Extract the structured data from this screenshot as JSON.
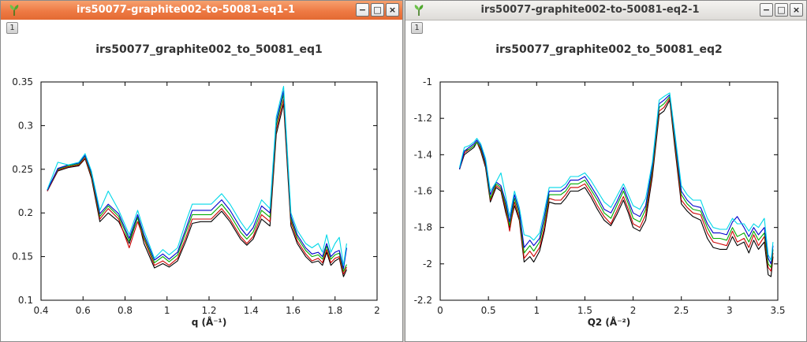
{
  "windows": [
    {
      "title": "irs50077-graphite002-to-50081-eq1-1",
      "tab": "1",
      "active": true
    },
    {
      "title": "irs50077-graphite002-to-50081-eq2-1",
      "tab": "1",
      "active": false
    }
  ],
  "window_buttons": {
    "minimize": "−",
    "maximize": "□",
    "close": "×"
  },
  "chart_data": [
    {
      "type": "line",
      "title": "irs50077_graphite002_to_50081_eq1",
      "xlabel": "q (Å⁻¹)",
      "ylabel": "",
      "xlim": [
        0.4,
        2
      ],
      "ylim": [
        0.1,
        0.35
      ],
      "xticks": [
        0.4,
        0.6,
        0.8,
        1,
        1.2,
        1.4,
        1.6,
        1.8,
        2
      ],
      "yticks": [
        0.1,
        0.15,
        0.2,
        0.25,
        0.3,
        0.35
      ],
      "grid": false,
      "x": [
        0.43,
        0.48,
        0.53,
        0.58,
        0.61,
        0.64,
        0.68,
        0.72,
        0.77,
        0.82,
        0.86,
        0.89,
        0.94,
        0.98,
        1.01,
        1.05,
        1.09,
        1.12,
        1.16,
        1.21,
        1.26,
        1.3,
        1.35,
        1.38,
        1.41,
        1.45,
        1.49,
        1.52,
        1.555,
        1.59,
        1.62,
        1.66,
        1.69,
        1.72,
        1.74,
        1.76,
        1.78,
        1.8,
        1.82,
        1.84,
        1.855
      ],
      "series": [
        {
          "color": "#000000",
          "values": [
            0.225,
            0.248,
            0.252,
            0.254,
            0.262,
            0.24,
            0.19,
            0.2,
            0.19,
            0.165,
            0.195,
            0.165,
            0.137,
            0.142,
            0.138,
            0.145,
            0.168,
            0.188,
            0.19,
            0.19,
            0.202,
            0.19,
            0.17,
            0.163,
            0.17,
            0.193,
            0.185,
            0.29,
            0.325,
            0.185,
            0.165,
            0.15,
            0.143,
            0.145,
            0.14,
            0.155,
            0.14,
            0.145,
            0.148,
            0.127,
            0.135
          ]
        },
        {
          "color": "#cc0000",
          "values": [
            0.225,
            0.249,
            0.253,
            0.255,
            0.263,
            0.242,
            0.193,
            0.205,
            0.193,
            0.16,
            0.19,
            0.17,
            0.14,
            0.145,
            0.14,
            0.148,
            0.172,
            0.193,
            0.193,
            0.193,
            0.205,
            0.193,
            0.173,
            0.165,
            0.173,
            0.198,
            0.19,
            0.295,
            0.33,
            0.19,
            0.168,
            0.153,
            0.145,
            0.148,
            0.143,
            0.158,
            0.143,
            0.148,
            0.15,
            0.13,
            0.138
          ]
        },
        {
          "color": "#00aa00",
          "values": [
            0.226,
            0.25,
            0.254,
            0.256,
            0.265,
            0.244,
            0.196,
            0.208,
            0.196,
            0.168,
            0.195,
            0.172,
            0.143,
            0.15,
            0.144,
            0.152,
            0.178,
            0.198,
            0.198,
            0.198,
            0.21,
            0.198,
            0.178,
            0.17,
            0.178,
            0.203,
            0.195,
            0.3,
            0.336,
            0.193,
            0.172,
            0.157,
            0.15,
            0.152,
            0.147,
            0.162,
            0.147,
            0.152,
            0.154,
            0.133,
            0.141
          ]
        },
        {
          "color": "#0000cc",
          "values": [
            0.226,
            0.251,
            0.255,
            0.257,
            0.266,
            0.246,
            0.199,
            0.21,
            0.199,
            0.171,
            0.198,
            0.175,
            0.146,
            0.153,
            0.147,
            0.155,
            0.182,
            0.203,
            0.203,
            0.203,
            0.215,
            0.203,
            0.183,
            0.174,
            0.183,
            0.208,
            0.2,
            0.305,
            0.34,
            0.196,
            0.175,
            0.16,
            0.153,
            0.155,
            0.15,
            0.165,
            0.15,
            0.155,
            0.157,
            0.136,
            0.16
          ]
        },
        {
          "color": "#00d8e8",
          "values": [
            0.227,
            0.258,
            0.255,
            0.258,
            0.268,
            0.248,
            0.203,
            0.225,
            0.203,
            0.175,
            0.203,
            0.18,
            0.148,
            0.158,
            0.152,
            0.16,
            0.19,
            0.21,
            0.21,
            0.21,
            0.222,
            0.21,
            0.19,
            0.18,
            0.19,
            0.215,
            0.205,
            0.31,
            0.345,
            0.2,
            0.18,
            0.165,
            0.16,
            0.165,
            0.155,
            0.175,
            0.155,
            0.165,
            0.172,
            0.14,
            0.165
          ]
        }
      ]
    },
    {
      "type": "line",
      "title": "irs50077_graphite002_to_50081_eq2",
      "xlabel": "Q2 (Å⁻²)",
      "ylabel": "",
      "xlim": [
        0,
        3.5
      ],
      "ylim": [
        -2.2,
        -1
      ],
      "xticks": [
        0,
        0.5,
        1,
        1.5,
        2,
        2.5,
        3,
        3.5
      ],
      "yticks": [
        -2.2,
        -2,
        -1.8,
        -1.6,
        -1.4,
        -1.2,
        -1
      ],
      "grid": false,
      "x": [
        0.2,
        0.25,
        0.3,
        0.35,
        0.38,
        0.42,
        0.47,
        0.52,
        0.58,
        0.63,
        0.68,
        0.72,
        0.77,
        0.82,
        0.87,
        0.93,
        0.97,
        1.03,
        1.08,
        1.13,
        1.19,
        1.25,
        1.3,
        1.35,
        1.43,
        1.5,
        1.56,
        1.63,
        1.7,
        1.77,
        1.83,
        1.9,
        1.95,
        2.0,
        2.07,
        2.13,
        2.2,
        2.27,
        2.32,
        2.38,
        2.43,
        2.5,
        2.56,
        2.62,
        2.7,
        2.77,
        2.83,
        2.9,
        2.97,
        3.03,
        3.08,
        3.15,
        3.2,
        3.25,
        3.3,
        3.36,
        3.4,
        3.43,
        3.45
      ],
      "series": [
        {
          "color": "#000000",
          "values": [
            -1.48,
            -1.4,
            -1.38,
            -1.36,
            -1.33,
            -1.38,
            -1.47,
            -1.66,
            -1.58,
            -1.6,
            -1.72,
            -1.8,
            -1.68,
            -1.76,
            -1.99,
            -1.96,
            -1.99,
            -1.93,
            -1.82,
            -1.66,
            -1.67,
            -1.67,
            -1.64,
            -1.6,
            -1.6,
            -1.58,
            -1.63,
            -1.7,
            -1.76,
            -1.79,
            -1.73,
            -1.65,
            -1.72,
            -1.8,
            -1.82,
            -1.76,
            -1.52,
            -1.18,
            -1.16,
            -1.1,
            -1.35,
            -1.67,
            -1.71,
            -1.74,
            -1.76,
            -1.86,
            -1.91,
            -1.92,
            -1.92,
            -1.85,
            -1.9,
            -1.88,
            -1.94,
            -1.87,
            -1.92,
            -1.88,
            -2.06,
            -2.07,
            -1.96
          ]
        },
        {
          "color": "#cc0000",
          "values": [
            -1.48,
            -1.39,
            -1.37,
            -1.35,
            -1.33,
            -1.37,
            -1.46,
            -1.65,
            -1.57,
            -1.59,
            -1.7,
            -1.82,
            -1.66,
            -1.75,
            -1.97,
            -1.93,
            -1.96,
            -1.91,
            -1.8,
            -1.64,
            -1.65,
            -1.65,
            -1.62,
            -1.58,
            -1.58,
            -1.56,
            -1.61,
            -1.68,
            -1.74,
            -1.78,
            -1.71,
            -1.63,
            -1.7,
            -1.78,
            -1.8,
            -1.73,
            -1.5,
            -1.16,
            -1.14,
            -1.09,
            -1.33,
            -1.65,
            -1.69,
            -1.72,
            -1.73,
            -1.83,
            -1.88,
            -1.89,
            -1.9,
            -1.82,
            -1.88,
            -1.86,
            -1.91,
            -1.84,
            -1.9,
            -1.85,
            -2.02,
            -2.04,
            -1.94
          ]
        },
        {
          "color": "#00aa00",
          "values": [
            -1.48,
            -1.38,
            -1.37,
            -1.35,
            -1.33,
            -1.36,
            -1.45,
            -1.64,
            -1.56,
            -1.58,
            -1.68,
            -1.79,
            -1.64,
            -1.73,
            -1.94,
            -1.9,
            -1.93,
            -1.88,
            -1.77,
            -1.62,
            -1.62,
            -1.62,
            -1.6,
            -1.56,
            -1.56,
            -1.54,
            -1.59,
            -1.65,
            -1.72,
            -1.75,
            -1.68,
            -1.6,
            -1.67,
            -1.75,
            -1.77,
            -1.7,
            -1.48,
            -1.14,
            -1.12,
            -1.08,
            -1.31,
            -1.62,
            -1.67,
            -1.7,
            -1.71,
            -1.8,
            -1.86,
            -1.86,
            -1.87,
            -1.8,
            -1.85,
            -1.83,
            -1.88,
            -1.82,
            -1.87,
            -1.83,
            -2.0,
            -2.02,
            -1.92
          ]
        },
        {
          "color": "#0000cc",
          "values": [
            -1.48,
            -1.38,
            -1.36,
            -1.34,
            -1.32,
            -1.35,
            -1.44,
            -1.62,
            -1.55,
            -1.57,
            -1.66,
            -1.77,
            -1.62,
            -1.71,
            -1.91,
            -1.87,
            -1.9,
            -1.86,
            -1.74,
            -1.6,
            -1.6,
            -1.6,
            -1.58,
            -1.54,
            -1.54,
            -1.52,
            -1.57,
            -1.63,
            -1.7,
            -1.72,
            -1.66,
            -1.58,
            -1.65,
            -1.72,
            -1.74,
            -1.68,
            -1.46,
            -1.12,
            -1.1,
            -1.07,
            -1.29,
            -1.6,
            -1.65,
            -1.68,
            -1.69,
            -1.78,
            -1.83,
            -1.83,
            -1.84,
            -1.77,
            -1.74,
            -1.8,
            -1.85,
            -1.8,
            -1.84,
            -1.8,
            -1.97,
            -2.0,
            -1.9
          ]
        },
        {
          "color": "#00d8e8",
          "values": [
            -1.47,
            -1.36,
            -1.35,
            -1.33,
            -1.31,
            -1.34,
            -1.42,
            -1.6,
            -1.55,
            -1.5,
            -1.63,
            -1.74,
            -1.6,
            -1.69,
            -1.84,
            -1.85,
            -1.87,
            -1.83,
            -1.71,
            -1.58,
            -1.58,
            -1.58,
            -1.56,
            -1.52,
            -1.52,
            -1.5,
            -1.54,
            -1.6,
            -1.66,
            -1.69,
            -1.63,
            -1.56,
            -1.62,
            -1.68,
            -1.7,
            -1.64,
            -1.44,
            -1.1,
            -1.08,
            -1.06,
            -1.27,
            -1.57,
            -1.62,
            -1.65,
            -1.65,
            -1.75,
            -1.8,
            -1.81,
            -1.81,
            -1.75,
            -1.78,
            -1.78,
            -1.82,
            -1.78,
            -1.8,
            -1.75,
            -1.95,
            -1.98,
            -1.88
          ]
        }
      ]
    }
  ]
}
